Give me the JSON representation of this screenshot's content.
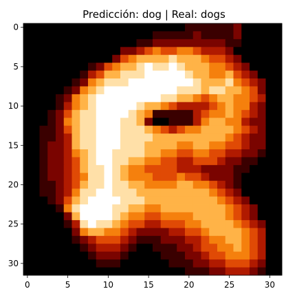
{
  "chart_data": {
    "type": "heatmap",
    "title": "Predicción: dog | Real: dogs",
    "xlabel": "",
    "ylabel": "",
    "x_ticks": [
      0,
      5,
      10,
      15,
      20,
      25,
      30
    ],
    "y_ticks": [
      0,
      5,
      10,
      15,
      20,
      25,
      30
    ],
    "xlim": [
      -0.5,
      31.5
    ],
    "ylim": [
      31.5,
      -0.5
    ],
    "image_size": [
      32,
      32
    ],
    "colormap": [
      "#000000",
      "#3a0000",
      "#7a0400",
      "#b01a00",
      "#e04a05",
      "#f5800d",
      "#ffb347",
      "#ffe0a8",
      "#ffffff"
    ],
    "pixels": [
      "00000000000000000000111111200000",
      "00000000000000001111121111200000",
      "00000000000000112222222221100000",
      "00000000000022345445543332000000",
      "00000000000245666676665443200000",
      "00000000124566787787666554320000",
      "00000001346677788888766556432000",
      "00000012567778888888876667543200",
      "00000125678888888887776776654200",
      "00001256788888888776654566554300",
      "00001356788888766543333456553200",
      "00012467788887651111134556543200",
      "00012567788877620011135665532200",
      "00112467788877765434556666543200",
      "00112367788877776666666665432200",
      "00122367788877766665566554432200",
      "00122356788777766554455443322100",
      "00122346788776655443344432211000",
      "00122346778765544443332222110000",
      "00122345778765554445443222100000",
      "00112346778776655556655432100000",
      "00112357788777666666666543200000",
      "00012467888877766666666654320000",
      "00001578888776655666666665432000",
      "00000268888765544555566665432000",
      "00000137877654433444556666543200",
      "00000025665543222233445666654300",
      "00000012344432111222334556654300",
      "00000001233321001112234455654300",
      "00000000122210000111223445554300",
      "00000000011100000011122334443200",
      "00000000000000000000111223332100"
    ]
  }
}
